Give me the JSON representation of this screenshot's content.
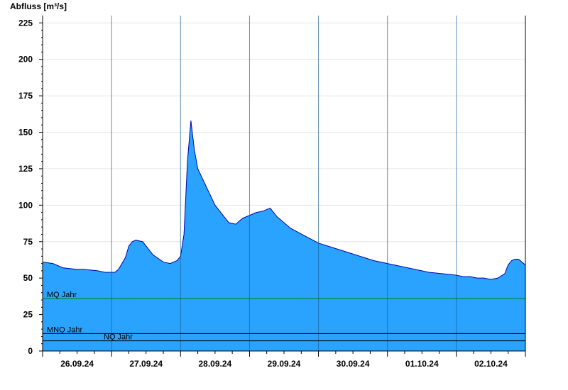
{
  "chart_data": {
    "type": "area",
    "title": "",
    "ylabel": "Abfluss [m³/s]",
    "xlabel": "",
    "ylim": [
      0,
      230
    ],
    "yticks": [
      0,
      25,
      50,
      75,
      100,
      125,
      150,
      175,
      200,
      225
    ],
    "grid": "horizontal",
    "day_labels": [
      "26.09.24",
      "27.09.24",
      "28.09.24",
      "29.09.24",
      "30.09.24",
      "01.10.24",
      "02.10.24"
    ],
    "x_range_days": [
      0,
      7
    ],
    "colors": {
      "fill": "#29a3fe",
      "line": "#0000aa",
      "mq": "#008000",
      "nq": "#000000",
      "mnq": "#000000"
    },
    "reference_lines": [
      {
        "label": "MQ Jahr",
        "value": 36
      },
      {
        "label": "MNQ Jahr",
        "value": 12
      },
      {
        "label": "NQ Jahr",
        "value": 7
      }
    ],
    "series": [
      {
        "x": [
          0,
          0.15,
          0.3,
          0.5,
          0.6,
          0.8,
          0.9,
          1.0,
          1.05,
          1.1,
          1.2,
          1.25,
          1.3,
          1.35,
          1.45,
          1.6,
          1.75,
          1.85,
          1.95,
          2.0,
          2.05,
          2.1,
          2.15,
          2.2,
          2.25,
          2.3,
          2.4,
          2.5,
          2.7,
          2.8,
          2.9,
          3.0,
          3.1,
          3.2,
          3.3,
          3.4,
          3.6,
          3.8,
          4.0,
          4.2,
          4.4,
          4.6,
          4.8,
          5.0,
          5.2,
          5.4,
          5.6,
          5.8,
          6.0,
          6.1,
          6.2,
          6.3,
          6.4,
          6.5,
          6.6,
          6.7,
          6.75,
          6.8,
          6.85,
          6.9,
          7.0
        ],
        "values": [
          61,
          60,
          57,
          56,
          56,
          55,
          54,
          54,
          54,
          56,
          64,
          72,
          75,
          76,
          75,
          66,
          61,
          60,
          62,
          65,
          80,
          130,
          158,
          138,
          125,
          120,
          110,
          100,
          88,
          87,
          91,
          93,
          95,
          96,
          98,
          92,
          84,
          79,
          74,
          71,
          68,
          65,
          62,
          60,
          58,
          56,
          54,
          53,
          52,
          51,
          51,
          50,
          50,
          49,
          50,
          53,
          59,
          62,
          63,
          63,
          59
        ]
      }
    ]
  }
}
